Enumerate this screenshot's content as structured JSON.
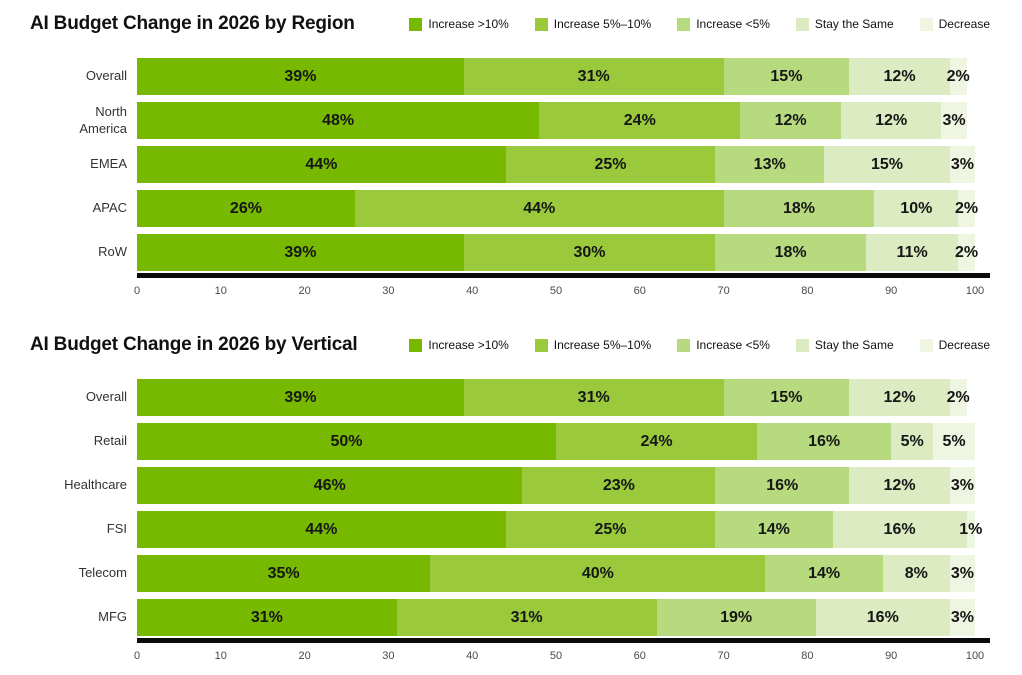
{
  "legend": [
    {
      "label": "Increase >10%",
      "color": "#76b900"
    },
    {
      "label": "Increase 5%–10%",
      "color": "#9aca3c"
    },
    {
      "label": "Increase <5%",
      "color": "#b8da7f"
    },
    {
      "label": "Stay the Same",
      "color": "#dcebc2"
    },
    {
      "label": "Decrease",
      "color": "#eef5e1"
    }
  ],
  "axis": {
    "min": 0,
    "max": 100,
    "line_color": "#0b0b0b"
  },
  "chart_data": [
    {
      "type": "bar",
      "orientation": "horizontal",
      "stacked": true,
      "title": "AI Budget Change in 2026 by Region",
      "legend_position": "top-right",
      "value_suffix": "%",
      "xlim": [
        0,
        100
      ],
      "x_ticks": [
        0,
        10,
        20,
        30,
        40,
        50,
        60,
        70,
        80,
        90,
        100
      ],
      "categories": [
        "Overall",
        "North\nAmerica",
        "EMEA",
        "APAC",
        "RoW"
      ],
      "series": [
        {
          "name": "Increase >10%",
          "values": [
            39,
            48,
            44,
            26,
            39
          ]
        },
        {
          "name": "Increase 5%–10%",
          "values": [
            31,
            24,
            25,
            44,
            30
          ]
        },
        {
          "name": "Increase <5%",
          "values": [
            15,
            12,
            13,
            18,
            18
          ]
        },
        {
          "name": "Stay the Same",
          "values": [
            12,
            12,
            15,
            10,
            11
          ]
        },
        {
          "name": "Decrease",
          "values": [
            2,
            3,
            3,
            2,
            2
          ]
        }
      ]
    },
    {
      "type": "bar",
      "orientation": "horizontal",
      "stacked": true,
      "title": "AI Budget Change in 2026 by Vertical",
      "legend_position": "top-right",
      "value_suffix": "%",
      "xlim": [
        0,
        100
      ],
      "x_ticks": [
        0,
        10,
        20,
        30,
        40,
        50,
        60,
        70,
        80,
        90,
        100
      ],
      "categories": [
        "Overall",
        "Retail",
        "Healthcare",
        "FSI",
        "Telecom",
        "MFG"
      ],
      "series": [
        {
          "name": "Increase >10%",
          "values": [
            39,
            50,
            46,
            44,
            35,
            31
          ]
        },
        {
          "name": "Increase 5%–10%",
          "values": [
            31,
            24,
            23,
            25,
            40,
            31
          ]
        },
        {
          "name": "Increase <5%",
          "values": [
            15,
            16,
            16,
            14,
            14,
            19
          ]
        },
        {
          "name": "Stay the Same",
          "values": [
            12,
            5,
            12,
            16,
            8,
            16
          ]
        },
        {
          "name": "Decrease",
          "values": [
            2,
            5,
            3,
            1,
            3,
            3
          ]
        }
      ]
    }
  ]
}
